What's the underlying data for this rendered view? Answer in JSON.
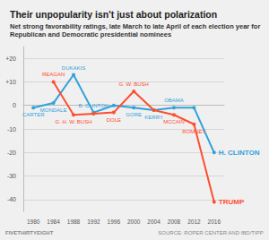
{
  "chart_data": {
    "type": "line",
    "title": "Their unpopularity isn't just about polarization",
    "subtitle": "Net strong favorability ratings, late March to late April of each election year for Republican and Democratic presidential nominees",
    "footer": "FIVETHIRTYEIGHT",
    "source": "SOURCE: ROPER CENTER AND IBD/TIPP",
    "x": [
      1980,
      1984,
      1988,
      1992,
      1996,
      2000,
      2004,
      2008,
      2012,
      2016
    ],
    "xlim": [
      1978,
      2018
    ],
    "xticks": [
      1980,
      1984,
      1988,
      1992,
      1996,
      2000,
      2004,
      2008,
      2012,
      2016
    ],
    "ylim": [
      -45,
      25
    ],
    "yticks": [
      {
        "value": 20,
        "label": "+20"
      },
      {
        "value": 10,
        "label": "+10"
      },
      0,
      -10,
      -20,
      -30,
      -40
    ],
    "grid": true,
    "series": [
      {
        "name": "Democratic",
        "color": "#30a2da",
        "values": [
          -1,
          1,
          13,
          -3,
          0,
          -1,
          -2,
          -1,
          -1,
          -20
        ],
        "point_labels": [
          "CARTER",
          "MONDALE",
          "DUKAKIS",
          "B. CLINTON",
          null,
          "GORE",
          "KERRY",
          "OBAMA",
          null,
          "H. CLINTON"
        ]
      },
      {
        "name": "Republican",
        "color": "#fc4f30",
        "values": [
          null,
          10,
          -4,
          -3.5,
          -3,
          6,
          -2,
          -4,
          -8,
          -41
        ],
        "point_labels": [
          null,
          "REAGAN",
          "G. H. W. BUSH",
          null,
          "DOLE",
          "G. W. BUSH",
          null,
          "MCCAIN",
          "ROMNEY",
          "TRUMP"
        ]
      }
    ]
  }
}
